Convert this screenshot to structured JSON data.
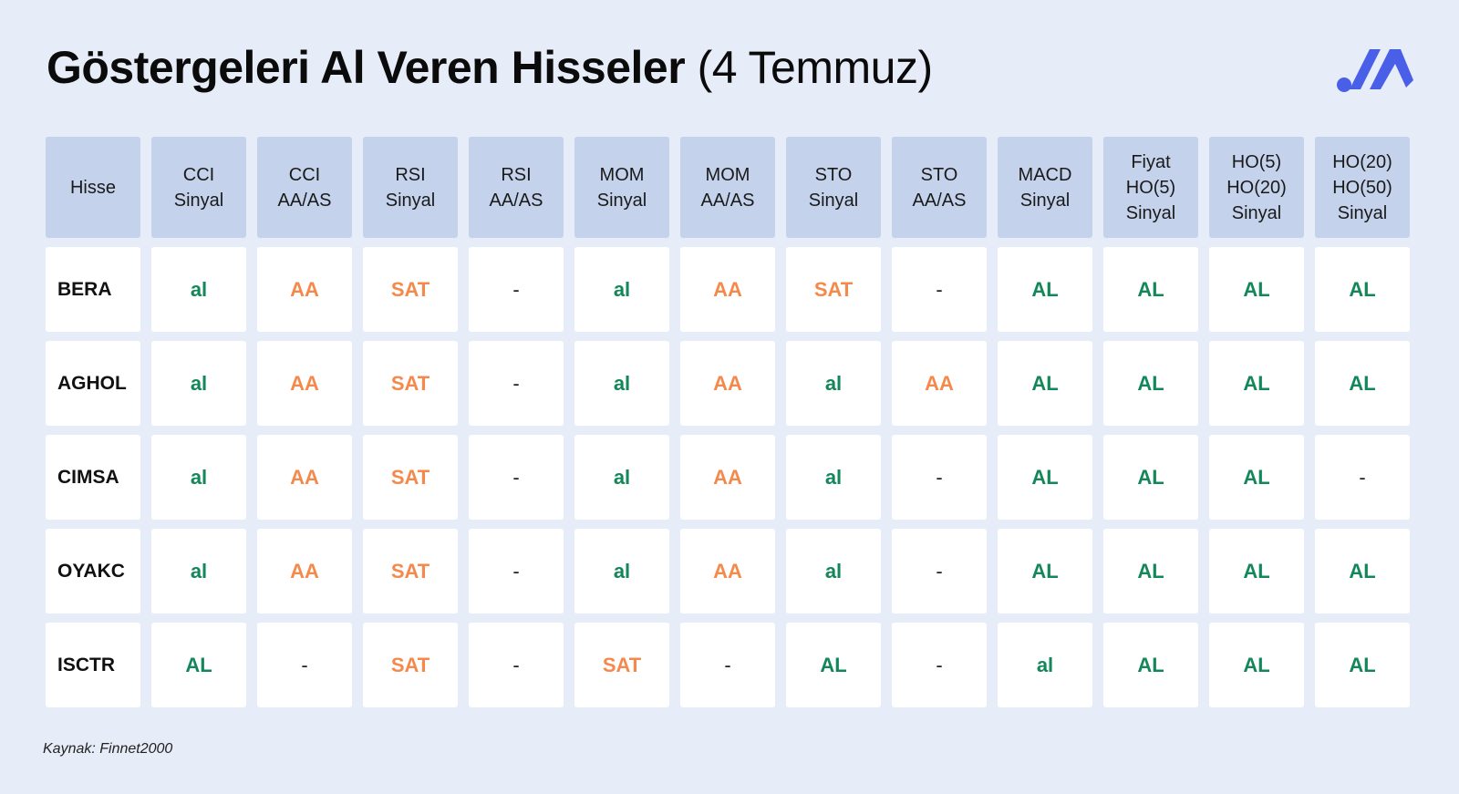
{
  "title": {
    "bold": "Göstergeleri Al Veren Hisseler",
    "light": "(4 Temmuz)"
  },
  "logo_icon": "brand-logo-icon",
  "colors": {
    "background": "#e7edf8",
    "header_cell": "#c4d2ec",
    "buy": "#14875a",
    "sell_or_aa": "#f5894b",
    "logo": "#4a5fe8"
  },
  "table": {
    "headers": [
      "Hisse",
      "CCI\nSinyal",
      "CCI\nAA/AS",
      "RSI\nSinyal",
      "RSI\nAA/AS",
      "MOM\nSinyal",
      "MOM\nAA/AS",
      "STO\nSinyal",
      "STO\nAA/AS",
      "MACD\nSinyal",
      "Fiyat\nHO(5)\nSinyal",
      "HO(5)\nHO(20)\nSinyal",
      "HO(20)\nHO(50)\nSinyal"
    ],
    "rows": [
      [
        "BERA",
        "al",
        "AA",
        "SAT",
        "-",
        "al",
        "AA",
        "SAT",
        "-",
        "AL",
        "AL",
        "AL",
        "AL"
      ],
      [
        "AGHOL",
        "al",
        "AA",
        "SAT",
        "-",
        "al",
        "AA",
        "al",
        "AA",
        "AL",
        "AL",
        "AL",
        "AL"
      ],
      [
        "CIMSA",
        "al",
        "AA",
        "SAT",
        "-",
        "al",
        "AA",
        "al",
        "-",
        "AL",
        "AL",
        "AL",
        "-"
      ],
      [
        "OYAKC",
        "al",
        "AA",
        "SAT",
        "-",
        "al",
        "AA",
        "al",
        "-",
        "AL",
        "AL",
        "AL",
        "AL"
      ],
      [
        "ISCTR",
        "AL",
        "-",
        "SAT",
        "-",
        "SAT",
        "-",
        "AL",
        "-",
        "al",
        "AL",
        "AL",
        "AL"
      ]
    ]
  },
  "source": "Kaynak: Finnet2000"
}
